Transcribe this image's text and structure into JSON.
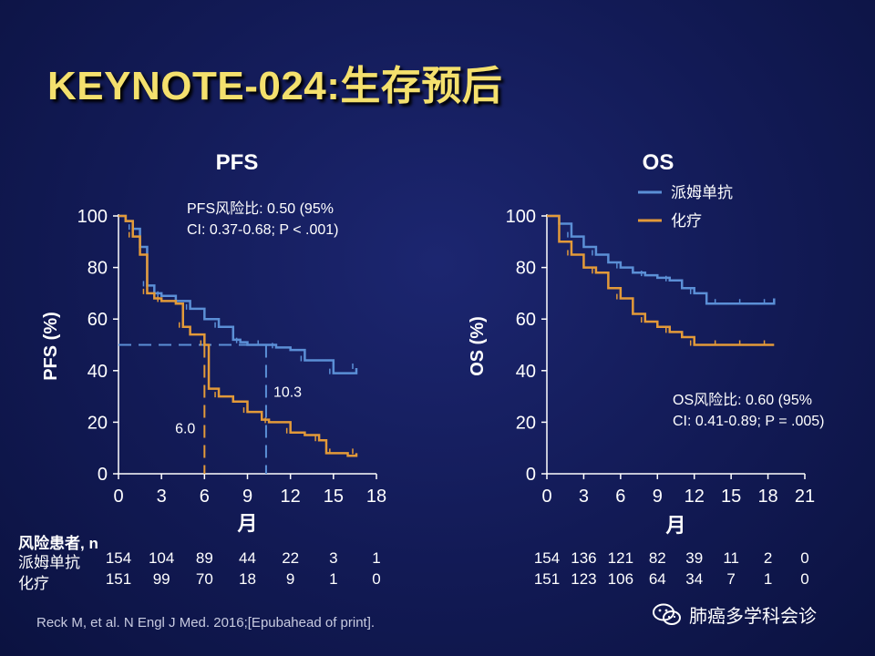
{
  "slide": {
    "title": "KEYNOTE-024:生存预后"
  },
  "colors": {
    "pembro": "#5b8fd6",
    "chemo": "#e39a39",
    "background": "#141c5a",
    "title": "#f4e06d"
  },
  "chart_data": [
    {
      "type": "line",
      "title": "PFS",
      "ylabel": "PFS (%)",
      "xlabel": "月",
      "xlim": [
        0,
        18
      ],
      "ylim": [
        0,
        100
      ],
      "xticks": [
        "0",
        "3",
        "6",
        "9",
        "12",
        "15",
        "18"
      ],
      "yticks": [
        "0",
        "20",
        "40",
        "60",
        "80",
        "100"
      ],
      "annotation": [
        "PFS风险比: 0.50 (95%",
        "CI: 0.37-0.68; P < .001)"
      ],
      "medians": [
        {
          "series": "派姆单抗",
          "x": 10.3,
          "label": "10.3"
        },
        {
          "series": "化疗",
          "x": 6.0,
          "label": "6.0"
        }
      ],
      "series": [
        {
          "name": "派姆单抗",
          "color": "#5b8fd6",
          "x": [
            0,
            0.5,
            1,
            1.5,
            2,
            2.5,
            3,
            4,
            5,
            6,
            7,
            8,
            8.5,
            9,
            10,
            10.5,
            11,
            12,
            13,
            14,
            15,
            16,
            16.6
          ],
          "y": [
            100,
            98,
            95,
            88,
            73,
            70,
            69,
            67,
            64,
            60,
            57,
            52,
            51,
            50,
            50,
            50,
            49,
            48,
            44,
            44,
            39,
            39,
            41
          ]
        },
        {
          "name": "化疗",
          "color": "#e39a39",
          "x": [
            0,
            0.5,
            1,
            1.5,
            2,
            2.5,
            3,
            4,
            4.5,
            5,
            6,
            6.3,
            7,
            8,
            9,
            10,
            10.5,
            11,
            12,
            13,
            14,
            14.5,
            15,
            16,
            16.6
          ],
          "y": [
            100,
            98,
            92,
            85,
            70,
            68,
            67,
            66,
            57,
            54,
            50,
            33,
            30,
            28,
            24,
            21,
            20,
            20,
            16,
            15,
            13,
            8,
            8,
            7,
            8
          ]
        }
      ],
      "risk_table": {
        "header": "风险患者, n",
        "times": [
          0,
          3,
          6,
          9,
          12,
          15,
          18
        ],
        "rows": [
          {
            "label": "派姆单抗",
            "values": [
              "154",
              "104",
              "89",
              "44",
              "22",
              "3",
              "1"
            ]
          },
          {
            "label": "化疗",
            "values": [
              "151",
              "99",
              "70",
              "18",
              "9",
              "1",
              "0"
            ]
          }
        ]
      }
    },
    {
      "type": "line",
      "title": "OS",
      "ylabel": "OS (%)",
      "xlabel": "月",
      "xlim": [
        0,
        21
      ],
      "ylim": [
        0,
        100
      ],
      "xticks": [
        "0",
        "3",
        "6",
        "9",
        "12",
        "15",
        "18",
        "21"
      ],
      "yticks": [
        "0",
        "20",
        "40",
        "60",
        "80",
        "100"
      ],
      "annotation": [
        "OS风险比: 0.60 (95%",
        "CI: 0.41-0.89; P = .005)"
      ],
      "legend": {
        "position": "top-right"
      },
      "series": [
        {
          "name": "派姆单抗",
          "color": "#5b8fd6",
          "x": [
            0,
            1,
            2,
            3,
            4,
            5,
            6,
            7,
            8,
            9,
            10,
            11,
            12,
            13,
            14,
            15,
            16,
            17,
            18,
            18.5
          ],
          "y": [
            100,
            97,
            92,
            88,
            85,
            82,
            80,
            78,
            77,
            76,
            75,
            72,
            70,
            66,
            66,
            66,
            66,
            66,
            66,
            68
          ]
        },
        {
          "name": "化疗",
          "color": "#e39a39",
          "x": [
            0,
            1,
            2,
            3,
            4,
            5,
            6,
            7,
            8,
            9,
            10,
            11,
            12,
            13,
            14,
            15,
            16,
            17,
            18,
            18.5
          ],
          "y": [
            100,
            90,
            85,
            80,
            78,
            72,
            68,
            62,
            59,
            57,
            55,
            53,
            50,
            50,
            50,
            50,
            50,
            50,
            50,
            50
          ]
        }
      ],
      "risk_table": {
        "times": [
          0,
          3,
          6,
          9,
          12,
          15,
          18,
          21
        ],
        "rows": [
          {
            "label": "派姆单抗",
            "values": [
              "154",
              "136",
              "121",
              "82",
              "39",
              "11",
              "2",
              "0"
            ]
          },
          {
            "label": "化疗",
            "values": [
              "151",
              "123",
              "106",
              "64",
              "34",
              "7",
              "1",
              "0"
            ]
          }
        ]
      }
    }
  ],
  "reference": "Reck M, et al. N Engl J Med. 2016;[Epubahead of print].",
  "watermark": {
    "text": "肺癌多学科会诊",
    "icon": "wechat-icon"
  }
}
